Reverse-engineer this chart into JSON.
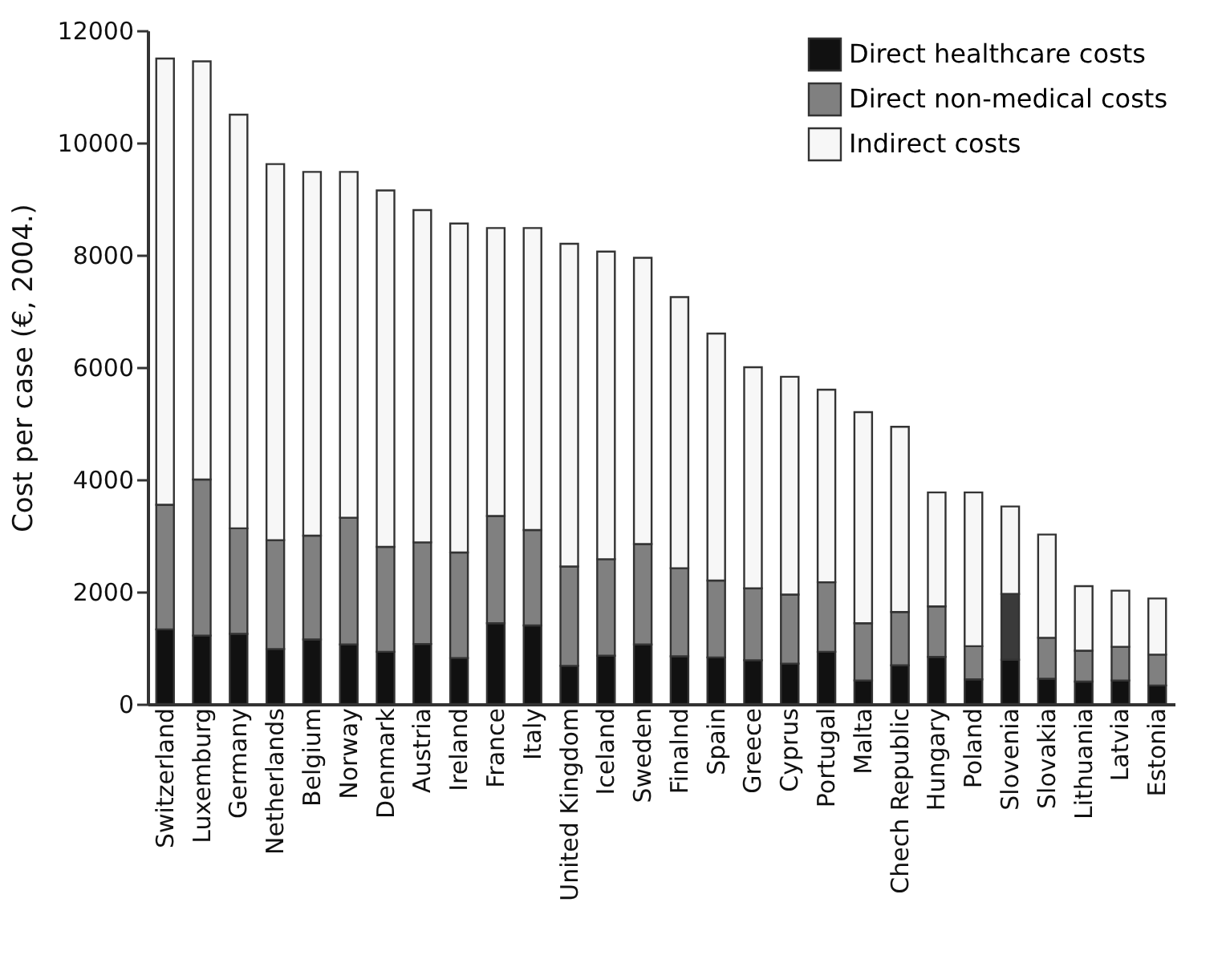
{
  "chart_data": {
    "type": "bar",
    "stacked": true,
    "ylabel": "Cost per case (€, 2004.)",
    "categories": [
      "Switzerland",
      "Luxemburg",
      "Germany",
      "Netherlands",
      "Belgium",
      "Norway",
      "Denmark",
      "Austria",
      "Ireland",
      "France",
      "Italy",
      "United Kingdom",
      "Iceland",
      "Sweden",
      "Finalnd",
      "Spain",
      "Greece",
      "Cyprus",
      "Portugal",
      "Malta",
      "Chech Republic",
      "Hungary",
      "Poland",
      "Slovenia",
      "Slovakia",
      "Lithuania",
      "Latvia",
      "Estonia"
    ],
    "series": [
      {
        "name": "Direct healthcare costs",
        "color": "#111111",
        "values": [
          1330,
          1220,
          1250,
          980,
          1150,
          1060,
          930,
          1070,
          820,
          1440,
          1400,
          680,
          860,
          1060,
          850,
          830,
          780,
          720,
          930,
          420,
          690,
          840,
          440,
          790,
          450,
          400,
          420,
          330
        ]
      },
      {
        "name": "Direct non-medical costs",
        "color": "#808080",
        "colors": [
          "#808080",
          "#808080",
          "#808080",
          "#808080",
          "#808080",
          "#808080",
          "#808080",
          "#808080",
          "#808080",
          "#808080",
          "#808080",
          "#808080",
          "#808080",
          "#808080",
          "#808080",
          "#808080",
          "#808080",
          "#808080",
          "#808080",
          "#808080",
          "#808080",
          "#808080",
          "#808080",
          "#3a3a3a",
          "#808080",
          "#808080",
          "#808080",
          "#808080"
        ],
        "values": [
          2220,
          2780,
          1880,
          1940,
          1850,
          2260,
          1870,
          1810,
          1880,
          1910,
          1700,
          1770,
          1720,
          1790,
          1570,
          1370,
          1280,
          1230,
          1240,
          1020,
          950,
          900,
          590,
          1170,
          730,
          550,
          600,
          550
        ]
      },
      {
        "name": "Indirect costs",
        "color": "#f7f7f7",
        "values": [
          7950,
          7450,
          7370,
          6700,
          6480,
          6160,
          6350,
          5920,
          5860,
          5130,
          5380,
          5750,
          5480,
          5100,
          4830,
          4400,
          3940,
          3880,
          3430,
          3760,
          3300,
          2030,
          2740,
          1560,
          1840,
          1150,
          1000,
          1000
        ]
      }
    ],
    "ylim": [
      0,
      12000
    ],
    "yticks": [
      0,
      2000,
      4000,
      6000,
      8000,
      10000,
      12000
    ],
    "grid": false,
    "legend": "top right"
  }
}
